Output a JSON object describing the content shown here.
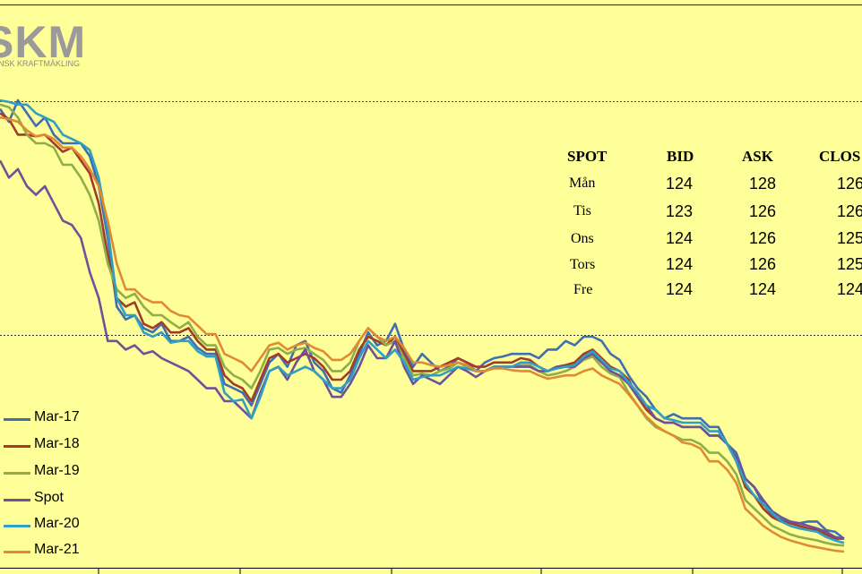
{
  "logo": {
    "text": "SKM",
    "subtext": "NSK KRAFTMÄKLING"
  },
  "table": {
    "headers": [
      "SPOT",
      "BID",
      "ASK",
      "CLOS"
    ],
    "rows": [
      {
        "day": "Mån",
        "bid": "124",
        "ask": "128",
        "close": "126"
      },
      {
        "day": "Tis",
        "bid": "123",
        "ask": "126",
        "close": "126"
      },
      {
        "day": "Ons",
        "bid": "124",
        "ask": "126",
        "close": "125"
      },
      {
        "day": "Tors",
        "bid": "124",
        "ask": "126",
        "close": "125"
      },
      {
        "day": "Fre",
        "bid": "124",
        "ask": "124",
        "close": "124"
      }
    ]
  },
  "legend": [
    {
      "label": "Mar-17",
      "color": "#3f6fb0"
    },
    {
      "label": "Mar-18",
      "color": "#a33b2b"
    },
    {
      "label": "Mar-19",
      "color": "#8fad4a"
    },
    {
      "label": "Spot",
      "color": "#6f519a"
    },
    {
      "label": "Mar-20",
      "color": "#2f9fc4"
    },
    {
      "label": "Mar-21",
      "color": "#e08a33"
    }
  ],
  "chart_data": {
    "type": "line",
    "x": [
      0,
      10,
      20,
      30,
      40,
      50,
      60,
      70,
      80,
      90,
      100,
      110,
      120,
      130,
      140,
      150,
      160,
      170,
      180,
      190,
      200,
      210,
      220,
      230,
      240,
      250,
      260,
      270,
      280,
      290,
      300,
      310,
      320,
      330,
      340,
      350,
      360,
      370,
      380,
      390,
      400,
      410,
      420,
      430,
      440,
      450,
      460,
      470,
      480,
      490,
      500,
      510,
      520,
      530,
      540,
      550,
      560,
      570,
      580,
      590,
      600,
      610,
      620,
      630,
      640,
      650,
      660,
      670,
      680,
      690,
      700,
      710,
      720,
      730,
      740,
      750,
      760,
      770,
      780,
      790,
      800,
      810,
      820,
      830,
      840,
      850,
      860,
      870,
      880,
      890,
      900,
      910,
      920,
      930,
      940
    ],
    "series": [
      {
        "name": "Mar-17",
        "color": "#3f6fb0",
        "values": [
          510,
          495,
          520,
          505,
          490,
          500,
          480,
          470,
          470,
          470,
          455,
          420,
          360,
          280,
          265,
          270,
          255,
          250,
          260,
          240,
          240,
          245,
          232,
          225,
          225,
          190,
          185,
          180,
          165,
          190,
          215,
          225,
          210,
          235,
          240,
          215,
          205,
          185,
          180,
          200,
          225,
          250,
          235,
          240,
          260,
          230,
          210,
          225,
          215,
          205,
          210,
          220,
          215,
          205,
          215,
          220,
          222,
          225,
          225,
          225,
          220,
          230,
          230,
          240,
          235,
          245,
          245,
          240,
          225,
          218,
          200,
          185,
          175,
          160,
          150,
          155,
          150,
          150,
          150,
          140,
          140,
          120,
          110,
          80,
          70,
          50,
          38,
          32,
          30,
          28,
          30,
          30,
          20,
          18,
          10
        ]
      },
      {
        "name": "Mar-18",
        "color": "#a33b2b",
        "values": [
          505,
          498,
          480,
          480,
          478,
          480,
          470,
          460,
          465,
          450,
          435,
          400,
          340,
          290,
          280,
          285,
          260,
          255,
          262,
          250,
          250,
          255,
          240,
          230,
          230,
          200,
          190,
          185,
          170,
          195,
          220,
          225,
          215,
          220,
          225,
          220,
          210,
          195,
          195,
          205,
          230,
          245,
          240,
          235,
          245,
          225,
          205,
          205,
          205,
          210,
          215,
          220,
          215,
          210,
          210,
          215,
          215,
          215,
          220,
          218,
          210,
          205,
          210,
          212,
          215,
          225,
          230,
          220,
          210,
          205,
          195,
          175,
          160,
          150,
          145,
          145,
          140,
          140,
          140,
          130,
          130,
          120,
          100,
          70,
          60,
          45,
          35,
          30,
          28,
          25,
          22,
          20,
          15,
          10,
          10
        ]
      },
      {
        "name": "Mar-19",
        "color": "#8fad4a",
        "values": [
          515,
          512,
          500,
          480,
          470,
          470,
          465,
          445,
          445,
          430,
          410,
          380,
          330,
          300,
          290,
          295,
          280,
          270,
          270,
          262,
          255,
          262,
          245,
          235,
          235,
          210,
          200,
          195,
          185,
          205,
          230,
          232,
          225,
          230,
          232,
          225,
          218,
          205,
          205,
          215,
          240,
          255,
          245,
          235,
          240,
          220,
          200,
          202,
          200,
          205,
          208,
          215,
          210,
          205,
          205,
          210,
          210,
          210,
          212,
          212,
          205,
          200,
          202,
          205,
          210,
          218,
          222,
          210,
          202,
          198,
          180,
          165,
          150,
          140,
          135,
          130,
          125,
          125,
          120,
          110,
          110,
          100,
          85,
          55,
          45,
          35,
          25,
          20,
          15,
          12,
          10,
          8,
          5,
          3,
          2
        ]
      },
      {
        "name": "Spot",
        "color": "#6f519a",
        "values": [
          450,
          430,
          440,
          420,
          410,
          420,
          400,
          380,
          375,
          360,
          320,
          290,
          240,
          240,
          230,
          235,
          225,
          228,
          220,
          215,
          210,
          205,
          195,
          185,
          185,
          170,
          170,
          160,
          150,
          180,
          205,
          210,
          195,
          215,
          230,
          205,
          195,
          175,
          175,
          190,
          210,
          235,
          220,
          220,
          240,
          210,
          190,
          200,
          195,
          190,
          200,
          210,
          205,
          198,
          205,
          210,
          210,
          210,
          210,
          210,
          205,
          205,
          210,
          210,
          210,
          220,
          225,
          215,
          205,
          200,
          190,
          175,
          165,
          150,
          145,
          145,
          140,
          140,
          140,
          130,
          130,
          120,
          105,
          80,
          70,
          55,
          42,
          35,
          30,
          28,
          25,
          22,
          18,
          12,
          10
        ]
      },
      {
        "name": "Mar-20",
        "color": "#2f9fc4",
        "values": [
          520,
          518,
          515,
          515,
          505,
          500,
          495,
          480,
          475,
          470,
          462,
          430,
          370,
          290,
          270,
          270,
          250,
          245,
          250,
          238,
          240,
          240,
          228,
          222,
          222,
          180,
          170,
          172,
          150,
          175,
          205,
          210,
          200,
          205,
          210,
          205,
          195,
          185,
          185,
          195,
          220,
          240,
          230,
          220,
          230,
          215,
          195,
          198,
          200,
          200,
          205,
          210,
          208,
          205,
          205,
          210,
          210,
          210,
          215,
          215,
          210,
          205,
          208,
          210,
          212,
          222,
          228,
          218,
          208,
          205,
          192,
          180,
          165,
          160,
          150,
          148,
          145,
          145,
          145,
          135,
          135,
          120,
          100,
          75,
          60,
          50,
          40,
          30,
          25,
          22,
          20,
          18,
          12,
          8,
          5
        ]
      },
      {
        "name": "Mar-21",
        "color": "#e08a33",
        "values": [
          500,
          498,
          495,
          485,
          478,
          480,
          475,
          465,
          465,
          455,
          440,
          420,
          380,
          330,
          300,
          300,
          290,
          285,
          285,
          275,
          270,
          268,
          258,
          248,
          248,
          225,
          220,
          215,
          205,
          220,
          235,
          238,
          230,
          235,
          238,
          232,
          228,
          218,
          218,
          225,
          240,
          255,
          245,
          240,
          245,
          232,
          215,
          215,
          212,
          210,
          212,
          215,
          212,
          205,
          205,
          208,
          208,
          206,
          205,
          205,
          200,
          196,
          198,
          200,
          200,
          205,
          208,
          200,
          195,
          190,
          178,
          165,
          152,
          142,
          135,
          130,
          122,
          120,
          115,
          100,
          100,
          90,
          75,
          45,
          35,
          25,
          18,
          12,
          8,
          5,
          2,
          0,
          -2,
          -4,
          -5
        ]
      }
    ],
    "grid": "two horizontal dotted lines",
    "legend_position": "bottom-left"
  }
}
